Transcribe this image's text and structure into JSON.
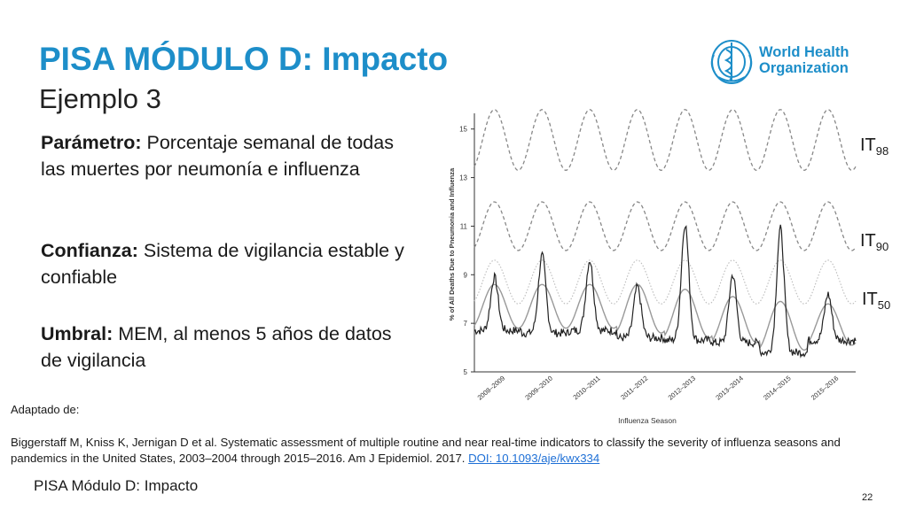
{
  "slide": {
    "title": "PISA MÓDULO D: Impacto",
    "subtitle": "Ejemplo 3",
    "logo_text_line1": "World Health",
    "logo_text_line2": "Organization",
    "parameter_label": "Parámetro:",
    "parameter_text": " Porcentaje semanal de todas las muertes por neumonía e influenza",
    "confidence_label": "Confianza:",
    "confidence_text": " Sistema de vigilancia estable y confiable",
    "threshold_label": "Umbral:",
    "threshold_text": " MEM, al menos 5 años de datos de vigilancia",
    "threshold_labels": [
      {
        "base": "IT",
        "sub": "98"
      },
      {
        "base": "IT",
        "sub": "90"
      },
      {
        "base": "IT",
        "sub": "50"
      }
    ],
    "adapted_from": "Adaptado de:",
    "citation_text": "Biggerstaff M, Kniss K, Jernigan D et al. Systematic assessment of multiple routine and near real-time indicators to classify the severity of influenza seasons and pandemics in the United States, 2003–2004 through 2015–2016. Am J Epidemiol. 2017. ",
    "citation_doi": "DOI: 10.1093/aje/kwx334",
    "footer": "PISA Módulo D: Impacto",
    "page_number": "22",
    "accent_color": "#1d8ec9",
    "link_color": "#1d6fd6",
    "logo_icon": "who-emblem-icon"
  },
  "chart_data": {
    "type": "line",
    "xlabel": "Influenza Season",
    "ylabel": "% of All Deaths Due to Pneumonia and Influenza",
    "ylim": [
      5,
      15.5
    ],
    "yticks": [
      5,
      7,
      9,
      11,
      13,
      15
    ],
    "categories": [
      "2008–2009",
      "2009–2010",
      "2010–2011",
      "2011–2012",
      "2012–2013",
      "2013–2014",
      "2014–2015",
      "2015–2016"
    ],
    "grid": false,
    "series": [
      {
        "style": "dashed",
        "peaks": [
          15.8,
          15.8,
          15.8,
          15.8,
          15.8,
          15.8,
          15.8,
          15.8
        ],
        "troughs": [
          13.3,
          13.3,
          13.3,
          13.3,
          13.3,
          13.3,
          13.3,
          13.3
        ]
      },
      {
        "style": "dashed",
        "peaks": [
          12.0,
          12.0,
          12.0,
          12.0,
          12.0,
          12.0,
          12.0,
          12.0
        ],
        "troughs": [
          10.0,
          10.0,
          10.0,
          10.0,
          10.0,
          10.0,
          10.0,
          10.0
        ]
      },
      {
        "style": "dotted",
        "peaks": [
          9.6,
          9.6,
          9.6,
          9.6,
          9.6,
          9.6,
          9.6,
          9.6
        ],
        "troughs": [
          7.8,
          7.8,
          7.8,
          7.8,
          7.8,
          7.8,
          7.8,
          7.8
        ]
      },
      {
        "style": "baseline",
        "peaks": [
          8.6,
          8.6,
          8.6,
          8.6,
          8.4,
          8.1,
          7.9,
          7.8
        ],
        "troughs": [
          6.8,
          6.8,
          6.8,
          6.6,
          6.4,
          6.2,
          5.9,
          6.1
        ]
      },
      {
        "style": "observed",
        "peaks": [
          8.9,
          9.8,
          9.6,
          8.5,
          11.1,
          9.0,
          10.9,
          8.2
        ],
        "troughs": [
          6.7,
          6.6,
          6.7,
          6.4,
          6.3,
          6.2,
          5.8,
          6.3
        ]
      }
    ]
  }
}
